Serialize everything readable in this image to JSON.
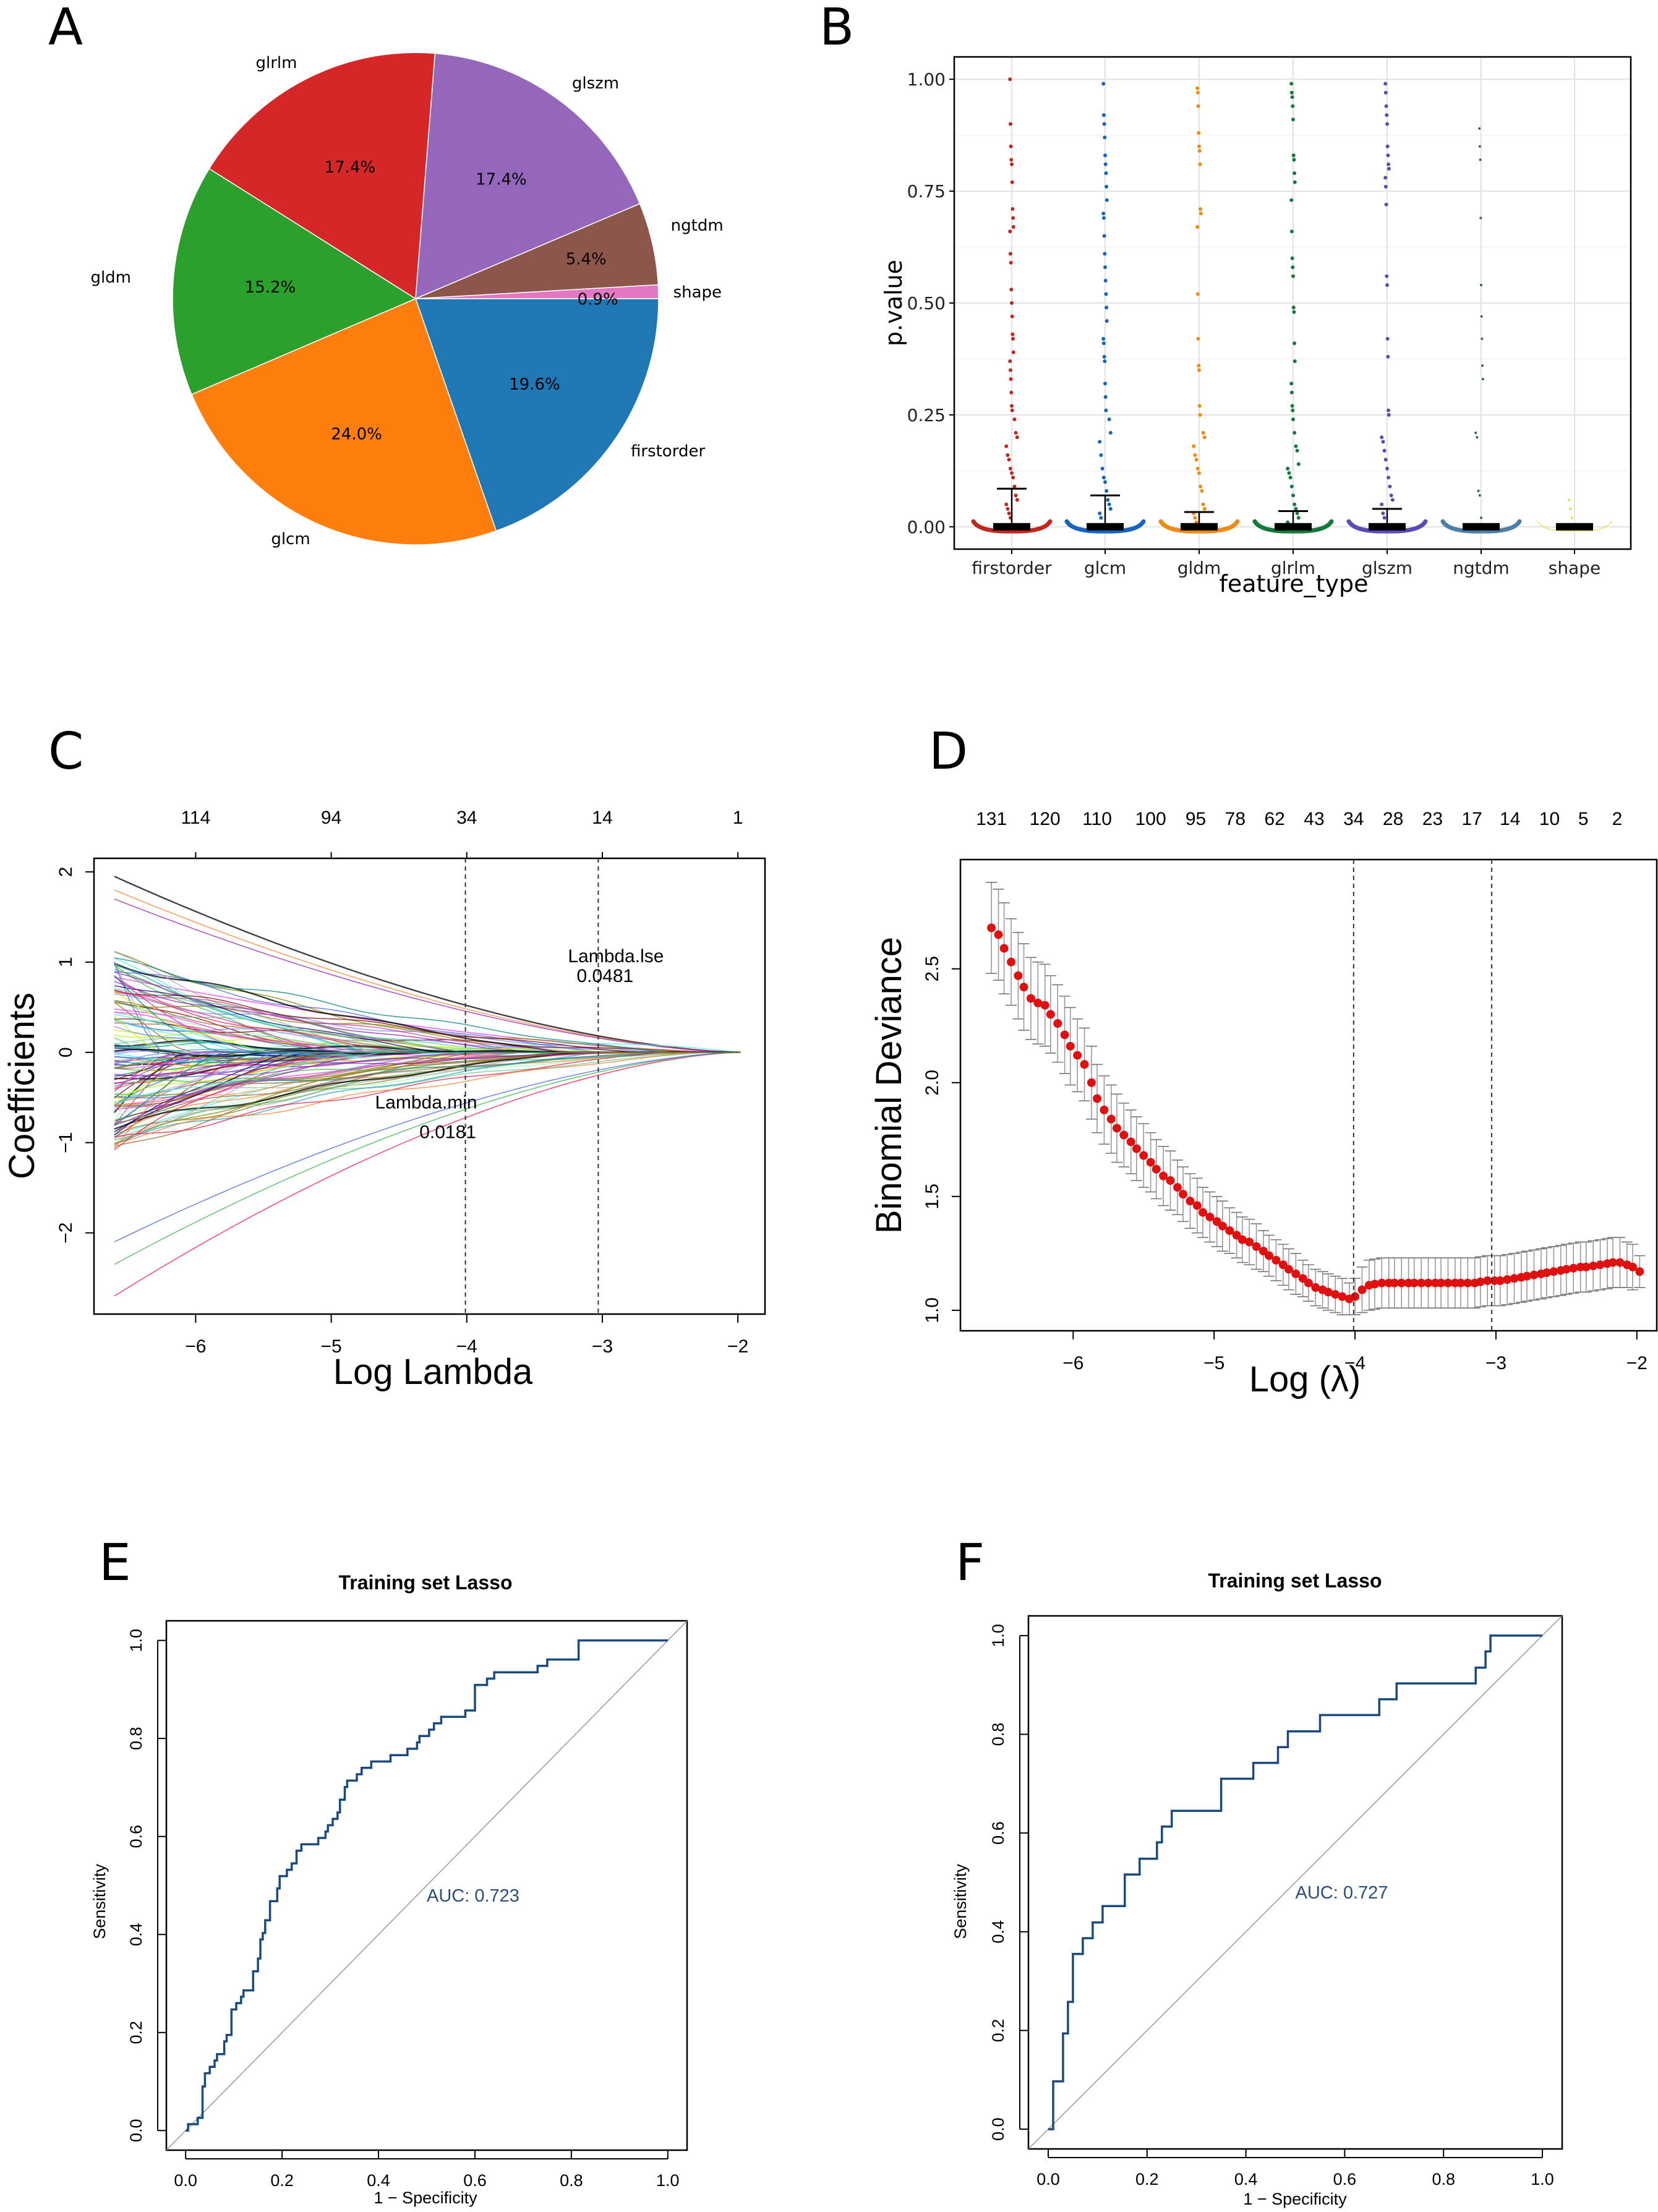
{
  "panels": {
    "A": {
      "letter": "A"
    },
    "B": {
      "letter": "B"
    },
    "C": {
      "letter": "C"
    },
    "D": {
      "letter": "D"
    },
    "E": {
      "letter": "E"
    },
    "F": {
      "letter": "F"
    }
  },
  "chart_data": [
    {
      "id": "A",
      "type": "pie",
      "title": "",
      "slices": [
        {
          "label": "firstorder",
          "value": 19.6,
          "pct_label": "19.6%",
          "color": "#1f77b4"
        },
        {
          "label": "glcm",
          "value": 24.0,
          "pct_label": "24.0%",
          "color": "#ff7f0e"
        },
        {
          "label": "gldm",
          "value": 15.2,
          "pct_label": "15.2%",
          "color": "#2ca02c"
        },
        {
          "label": "glrlm",
          "value": 17.4,
          "pct_label": "17.4%",
          "color": "#d62728"
        },
        {
          "label": "glszm",
          "value": 17.4,
          "pct_label": "17.4%",
          "color": "#9467bd"
        },
        {
          "label": "ngtdm",
          "value": 5.4,
          "pct_label": "5.4%",
          "color": "#8c564b"
        },
        {
          "label": "shape",
          "value": 0.9,
          "pct_label": "0.9%",
          "color": "#e377c2"
        }
      ]
    },
    {
      "id": "B",
      "type": "scatter",
      "title": "",
      "xlabel": "feature_type",
      "ylabel": "p.value",
      "ylim": [
        -0.05,
        1.05
      ],
      "yticks": [
        0.0,
        0.25,
        0.5,
        0.75,
        1.0
      ],
      "ytick_labels": [
        "0.00",
        "0.25",
        "0.50",
        "0.75",
        "1.00"
      ],
      "grid": true,
      "categories": [
        "firstorder",
        "glcm",
        "gldm",
        "glrlm",
        "glszm",
        "ngtdm",
        "shape"
      ],
      "colors": [
        "#c0281e",
        "#1565c0",
        "#ef8a12",
        "#137a3a",
        "#5b4bb5",
        "#4a80a8",
        "#e8d84a"
      ],
      "medians": [
        0.0,
        0.0,
        0.0,
        0.0,
        0.0,
        0.0,
        0.0
      ],
      "whisker_tops": [
        0.085,
        0.07,
        0.033,
        0.035,
        0.04,
        0.0,
        0.0
      ],
      "points": [
        [
          1.0,
          0.9,
          0.85,
          0.82,
          0.81,
          0.77,
          0.71,
          0.69,
          0.67,
          0.66,
          0.61,
          0.59,
          0.53,
          0.5,
          0.47,
          0.43,
          0.42,
          0.39,
          0.37,
          0.35,
          0.33,
          0.3,
          0.27,
          0.26,
          0.24,
          0.21,
          0.2,
          0.18,
          0.16,
          0.15,
          0.13,
          0.12,
          0.11,
          0.09,
          0.07,
          0.06,
          0.05,
          0.04,
          0.03,
          0.02
        ],
        [
          0.99,
          0.92,
          0.9,
          0.87,
          0.83,
          0.81,
          0.79,
          0.76,
          0.73,
          0.7,
          0.69,
          0.65,
          0.61,
          0.58,
          0.55,
          0.52,
          0.49,
          0.46,
          0.42,
          0.41,
          0.38,
          0.37,
          0.32,
          0.29,
          0.26,
          0.24,
          0.21,
          0.19,
          0.16,
          0.13,
          0.11,
          0.1,
          0.08,
          0.06,
          0.05,
          0.04,
          0.03,
          0.02
        ],
        [
          0.98,
          0.97,
          0.94,
          0.88,
          0.85,
          0.84,
          0.81,
          0.71,
          0.7,
          0.67,
          0.52,
          0.42,
          0.36,
          0.35,
          0.27,
          0.25,
          0.21,
          0.2,
          0.18,
          0.16,
          0.15,
          0.13,
          0.12,
          0.09,
          0.08,
          0.05,
          0.04,
          0.03,
          0.02,
          0.01
        ],
        [
          0.99,
          0.97,
          0.96,
          0.94,
          0.91,
          0.83,
          0.82,
          0.79,
          0.77,
          0.73,
          0.66,
          0.6,
          0.58,
          0.56,
          0.49,
          0.48,
          0.41,
          0.37,
          0.32,
          0.3,
          0.27,
          0.26,
          0.24,
          0.21,
          0.18,
          0.17,
          0.14,
          0.13,
          0.12,
          0.11,
          0.09,
          0.07,
          0.05,
          0.04,
          0.03,
          0.02,
          0.01
        ],
        [
          0.99,
          0.97,
          0.94,
          0.92,
          0.9,
          0.85,
          0.83,
          0.81,
          0.8,
          0.78,
          0.76,
          0.72,
          0.56,
          0.54,
          0.42,
          0.38,
          0.26,
          0.25,
          0.2,
          0.19,
          0.17,
          0.15,
          0.13,
          0.11,
          0.09,
          0.07,
          0.06,
          0.05,
          0.03,
          0.02
        ],
        [
          0.89,
          0.85,
          0.82,
          0.69,
          0.54,
          0.47,
          0.42,
          0.36,
          0.33,
          0.21,
          0.2,
          0.08,
          0.07,
          0.02
        ],
        [
          0.06,
          0.04,
          0.02
        ]
      ]
    },
    {
      "id": "C",
      "type": "line",
      "title": "",
      "xlabel": "Log Lambda",
      "ylabel": "Coefficients",
      "xlim": [
        -6.75,
        -1.8
      ],
      "ylim": [
        -2.9,
        2.15
      ],
      "xticks": [
        -6,
        -5,
        -4,
        -3,
        -2
      ],
      "xtick_labels": [
        "-6",
        "-5",
        "-4",
        "-3",
        "-2"
      ],
      "yticks": [
        -2,
        -1,
        0,
        1,
        2
      ],
      "ytick_labels": [
        "-2",
        "-1",
        "0",
        "1",
        "2"
      ],
      "top_axis": {
        "positions": [
          -6,
          -5,
          -4,
          -3,
          -2
        ],
        "labels": [
          "114",
          "94",
          "34",
          "14",
          "1"
        ]
      },
      "vlines": [
        -4.01,
        -3.03
      ],
      "annotations": [
        {
          "text": "Lambda.lse",
          "x": -2.9,
          "y": 1.0
        },
        {
          "text": "0.0481",
          "x": -2.98,
          "y": 0.78
        },
        {
          "text": "Lambda.min",
          "x": -4.3,
          "y": -0.62
        },
        {
          "text": "0.0181",
          "x": -4.14,
          "y": -0.95
        }
      ],
      "series_count": 131,
      "series_note": "131 coefficient paths shrinking to 0 at log lambda ≈ -1.98; starting values range approx -2.7 to 1.95 at log lambda -6.6"
    },
    {
      "id": "D",
      "type": "scatter",
      "title": "",
      "xlabel": "Log (λ)",
      "ylabel": "Binomial Deviance",
      "xlim": [
        -6.8,
        -1.85
      ],
      "ylim": [
        0.91,
        2.98
      ],
      "xticks": [
        -6,
        -5,
        -4,
        -3,
        -2
      ],
      "xtick_labels": [
        "-6",
        "-5",
        "-4",
        "-3",
        "-2"
      ],
      "yticks": [
        1.0,
        1.5,
        2.0,
        2.5
      ],
      "ytick_labels": [
        "1.0",
        "1.5",
        "2.0",
        "2.5"
      ],
      "top_axis": {
        "positions": [
          -6.58,
          -6.2,
          -5.83,
          -5.45,
          -5.13,
          -4.85,
          -4.57,
          -4.29,
          -4.01,
          -3.73,
          -3.45,
          -3.17,
          -2.9,
          -2.62,
          -2.38,
          -2.14
        ],
        "labels": [
          "131",
          "120",
          "110",
          "100",
          "95",
          "78",
          "62",
          "43",
          "34",
          "28",
          "23",
          "17",
          "14",
          "10",
          "5",
          "2"
        ]
      },
      "vlines": [
        -4.01,
        -3.03
      ],
      "x": [
        -6.58,
        -6.53,
        -6.49,
        -6.44,
        -6.39,
        -6.35,
        -6.3,
        -6.25,
        -6.2,
        -6.16,
        -6.11,
        -6.06,
        -6.02,
        -5.97,
        -5.92,
        -5.87,
        -5.83,
        -5.78,
        -5.73,
        -5.69,
        -5.64,
        -5.59,
        -5.55,
        -5.5,
        -5.45,
        -5.41,
        -5.36,
        -5.31,
        -5.26,
        -5.22,
        -5.17,
        -5.12,
        -5.08,
        -5.03,
        -4.98,
        -4.94,
        -4.89,
        -4.84,
        -4.8,
        -4.75,
        -4.7,
        -4.65,
        -4.61,
        -4.56,
        -4.51,
        -4.47,
        -4.42,
        -4.37,
        -4.33,
        -4.28,
        -4.23,
        -4.19,
        -4.14,
        -4.09,
        -4.04,
        -4.0,
        -3.95,
        -3.9,
        -3.86,
        -3.81,
        -3.76,
        -3.72,
        -3.67,
        -3.62,
        -3.58,
        -3.53,
        -3.48,
        -3.43,
        -3.39,
        -3.34,
        -3.29,
        -3.25,
        -3.2,
        -3.15,
        -3.11,
        -3.06,
        -3.01,
        -2.97,
        -2.92,
        -2.87,
        -2.82,
        -2.78,
        -2.73,
        -2.68,
        -2.64,
        -2.59,
        -2.54,
        -2.5,
        -2.45,
        -2.4,
        -2.36,
        -2.31,
        -2.26,
        -2.21,
        -2.17,
        -2.12,
        -2.07,
        -2.03,
        -1.98
      ],
      "y": [
        2.68,
        2.65,
        2.59,
        2.53,
        2.47,
        2.42,
        2.37,
        2.35,
        2.34,
        2.3,
        2.26,
        2.21,
        2.16,
        2.12,
        2.08,
        2.0,
        1.93,
        1.88,
        1.84,
        1.8,
        1.77,
        1.74,
        1.71,
        1.68,
        1.65,
        1.62,
        1.59,
        1.57,
        1.54,
        1.51,
        1.48,
        1.46,
        1.43,
        1.41,
        1.39,
        1.37,
        1.35,
        1.33,
        1.31,
        1.3,
        1.28,
        1.26,
        1.24,
        1.22,
        1.2,
        1.18,
        1.16,
        1.14,
        1.12,
        1.1,
        1.09,
        1.08,
        1.07,
        1.06,
        1.05,
        1.06,
        1.09,
        1.11,
        1.115,
        1.12,
        1.12,
        1.12,
        1.12,
        1.12,
        1.12,
        1.12,
        1.12,
        1.12,
        1.12,
        1.12,
        1.12,
        1.12,
        1.12,
        1.12,
        1.125,
        1.13,
        1.13,
        1.13,
        1.135,
        1.14,
        1.145,
        1.15,
        1.155,
        1.16,
        1.165,
        1.17,
        1.175,
        1.18,
        1.185,
        1.19,
        1.19,
        1.195,
        1.2,
        1.205,
        1.21,
        1.21,
        1.2,
        1.19,
        1.17
      ],
      "se": [
        0.2,
        0.2,
        0.2,
        0.19,
        0.19,
        0.19,
        0.18,
        0.18,
        0.18,
        0.17,
        0.17,
        0.17,
        0.17,
        0.16,
        0.16,
        0.16,
        0.15,
        0.15,
        0.15,
        0.15,
        0.14,
        0.14,
        0.14,
        0.14,
        0.13,
        0.13,
        0.13,
        0.13,
        0.12,
        0.12,
        0.12,
        0.12,
        0.11,
        0.11,
        0.11,
        0.11,
        0.1,
        0.1,
        0.1,
        0.1,
        0.1,
        0.09,
        0.09,
        0.09,
        0.09,
        0.09,
        0.09,
        0.08,
        0.08,
        0.08,
        0.08,
        0.08,
        0.08,
        0.08,
        0.07,
        0.08,
        0.1,
        0.11,
        0.11,
        0.11,
        0.11,
        0.11,
        0.11,
        0.11,
        0.11,
        0.11,
        0.11,
        0.11,
        0.11,
        0.11,
        0.11,
        0.11,
        0.11,
        0.11,
        0.11,
        0.11,
        0.11,
        0.11,
        0.11,
        0.11,
        0.11,
        0.11,
        0.11,
        0.11,
        0.11,
        0.11,
        0.11,
        0.11,
        0.11,
        0.11,
        0.11,
        0.11,
        0.11,
        0.11,
        0.11,
        0.11,
        0.1,
        0.1,
        0.07
      ]
    },
    {
      "id": "E",
      "type": "line",
      "title": "Training set Lasso",
      "xlabel": "1 - Specificity",
      "ylabel": "Sensitivity",
      "xlim": [
        -0.04,
        1.04
      ],
      "ylim": [
        -0.04,
        1.04
      ],
      "xticks": [
        0.0,
        0.2,
        0.4,
        0.6,
        0.8,
        1.0
      ],
      "xtick_labels": [
        "0.0",
        "0.2",
        "0.4",
        "0.6",
        "0.8",
        "1.0"
      ],
      "yticks": [
        0.0,
        0.2,
        0.4,
        0.6,
        0.8,
        1.0
      ],
      "ytick_labels": [
        "0.0",
        "0.2",
        "0.4",
        "0.6",
        "0.8",
        "1.0"
      ],
      "annotation": "AUC: 0.723",
      "auc": 0.723,
      "diagonal": true,
      "roc_x": [
        0.0,
        0.005,
        0.005,
        0.025,
        0.025,
        0.035,
        0.035,
        0.04,
        0.04,
        0.05,
        0.05,
        0.06,
        0.06,
        0.065,
        0.065,
        0.08,
        0.08,
        0.085,
        0.085,
        0.095,
        0.095,
        0.105,
        0.105,
        0.115,
        0.115,
        0.12,
        0.12,
        0.125,
        0.125,
        0.14,
        0.14,
        0.15,
        0.15,
        0.155,
        0.155,
        0.16,
        0.16,
        0.165,
        0.165,
        0.175,
        0.175,
        0.19,
        0.19,
        0.195,
        0.195,
        0.21,
        0.21,
        0.22,
        0.22,
        0.23,
        0.23,
        0.24,
        0.24,
        0.275,
        0.275,
        0.29,
        0.29,
        0.295,
        0.295,
        0.305,
        0.305,
        0.315,
        0.315,
        0.32,
        0.32,
        0.33,
        0.33,
        0.335,
        0.335,
        0.355,
        0.355,
        0.365,
        0.365,
        0.385,
        0.385,
        0.425,
        0.425,
        0.46,
        0.46,
        0.48,
        0.48,
        0.485,
        0.485,
        0.505,
        0.505,
        0.515,
        0.515,
        0.53,
        0.53,
        0.58,
        0.58,
        0.6,
        0.6,
        0.625,
        0.625,
        0.64,
        0.64,
        0.73,
        0.73,
        0.75,
        0.75,
        0.815,
        0.815,
        1.0
      ],
      "roc_y": [
        0.0,
        0.0,
        0.013,
        0.013,
        0.026,
        0.026,
        0.09,
        0.09,
        0.117,
        0.117,
        0.13,
        0.13,
        0.143,
        0.143,
        0.156,
        0.156,
        0.182,
        0.182,
        0.195,
        0.195,
        0.247,
        0.247,
        0.26,
        0.26,
        0.273,
        0.273,
        0.286,
        0.286,
        0.286,
        0.286,
        0.325,
        0.325,
        0.351,
        0.351,
        0.39,
        0.39,
        0.403,
        0.403,
        0.429,
        0.429,
        0.468,
        0.468,
        0.494,
        0.494,
        0.519,
        0.519,
        0.532,
        0.532,
        0.545,
        0.545,
        0.571,
        0.571,
        0.584,
        0.584,
        0.597,
        0.597,
        0.61,
        0.61,
        0.623,
        0.623,
        0.636,
        0.636,
        0.649,
        0.649,
        0.675,
        0.675,
        0.701,
        0.701,
        0.714,
        0.714,
        0.727,
        0.727,
        0.74,
        0.74,
        0.753,
        0.753,
        0.766,
        0.766,
        0.779,
        0.779,
        0.792,
        0.792,
        0.805,
        0.805,
        0.818,
        0.818,
        0.831,
        0.831,
        0.844,
        0.844,
        0.857,
        0.857,
        0.909,
        0.909,
        0.922,
        0.922,
        0.935,
        0.935,
        0.948,
        0.948,
        0.961,
        0.961,
        1.0,
        1.0
      ]
    },
    {
      "id": "F",
      "type": "line",
      "title": "Training set Lasso",
      "xlabel": "1 - Specificity",
      "ylabel": "Sensitivity",
      "xlim": [
        -0.04,
        1.04
      ],
      "ylim": [
        -0.04,
        1.04
      ],
      "xticks": [
        0.0,
        0.2,
        0.4,
        0.6,
        0.8,
        1.0
      ],
      "xtick_labels": [
        "0.0",
        "0.2",
        "0.4",
        "0.6",
        "0.8",
        "1.0"
      ],
      "yticks": [
        0.0,
        0.2,
        0.4,
        0.6,
        0.8,
        1.0
      ],
      "ytick_labels": [
        "0.0",
        "0.2",
        "0.4",
        "0.6",
        "0.8",
        "1.0"
      ],
      "annotation": "AUC: 0.727",
      "auc": 0.727,
      "diagonal": true,
      "roc_x": [
        0.0,
        0.01,
        0.01,
        0.03,
        0.03,
        0.04,
        0.04,
        0.05,
        0.05,
        0.07,
        0.07,
        0.09,
        0.09,
        0.11,
        0.11,
        0.155,
        0.155,
        0.185,
        0.185,
        0.22,
        0.22,
        0.23,
        0.23,
        0.25,
        0.25,
        0.35,
        0.35,
        0.415,
        0.415,
        0.465,
        0.465,
        0.485,
        0.485,
        0.55,
        0.55,
        0.67,
        0.67,
        0.705,
        0.705,
        0.865,
        0.865,
        0.885,
        0.885,
        0.895,
        0.895,
        1.0
      ],
      "roc_y": [
        0.0,
        0.0,
        0.097,
        0.097,
        0.194,
        0.194,
        0.258,
        0.258,
        0.355,
        0.355,
        0.387,
        0.387,
        0.419,
        0.419,
        0.452,
        0.452,
        0.516,
        0.516,
        0.548,
        0.548,
        0.581,
        0.581,
        0.613,
        0.613,
        0.645,
        0.645,
        0.71,
        0.71,
        0.742,
        0.742,
        0.774,
        0.774,
        0.806,
        0.806,
        0.839,
        0.839,
        0.871,
        0.871,
        0.903,
        0.903,
        0.935,
        0.935,
        0.968,
        0.968,
        1.0,
        1.0
      ]
    }
  ]
}
